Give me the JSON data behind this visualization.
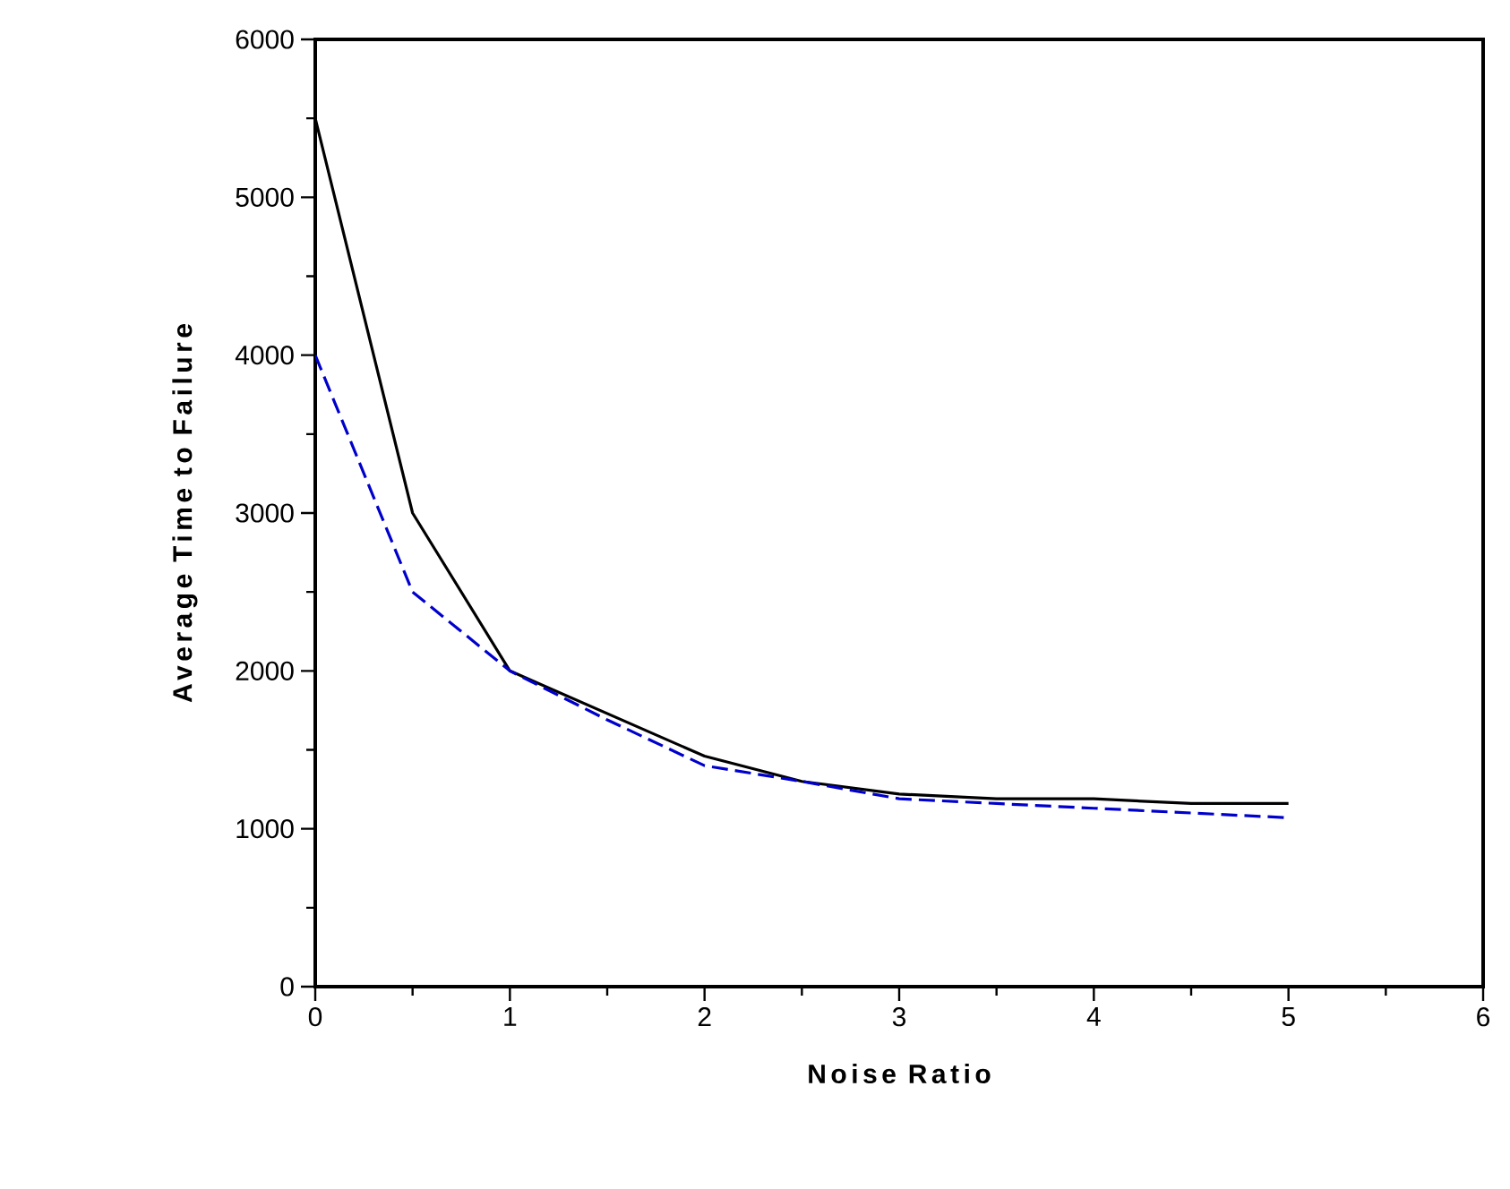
{
  "chart_data": {
    "type": "line",
    "xlabel": "Noise Ratio",
    "ylabel": "Average Time to Failure",
    "x": [
      0,
      0.5,
      1,
      1.5,
      2,
      2.5,
      3,
      3.5,
      4,
      4.5,
      5
    ],
    "series": [
      {
        "color": "#000000",
        "line_style": "solid",
        "values": [
          5500,
          3000,
          2000,
          1730,
          1460,
          1300,
          1220,
          1190,
          1190,
          1160,
          1160
        ]
      },
      {
        "color": "#0000cc",
        "line_style": "dashed",
        "values": [
          4000,
          2500,
          2000,
          1690,
          1400,
          1300,
          1190,
          1160,
          1130,
          1100,
          1070
        ]
      }
    ],
    "xlim": [
      0,
      6
    ],
    "xticks": [
      0,
      1,
      2,
      3,
      4,
      5,
      6
    ],
    "ylim": [
      0,
      6000
    ],
    "yticks": [
      0,
      1000,
      2000,
      3000,
      4000,
      5000,
      6000
    ],
    "grid": false,
    "legend": false,
    "marker": "none"
  }
}
